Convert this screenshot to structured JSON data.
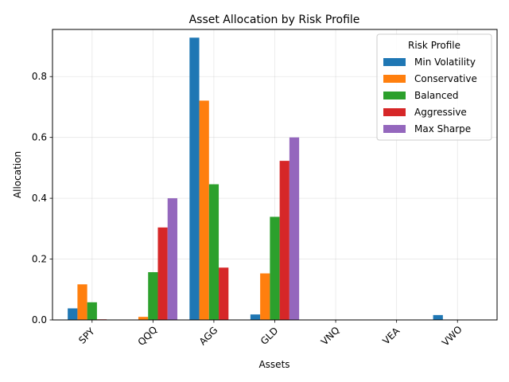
{
  "chart_data": {
    "type": "bar",
    "title": "Asset Allocation by Risk Profile",
    "xlabel": "Assets",
    "ylabel": "Allocation",
    "categories": [
      "SPY",
      "QQQ",
      "AGG",
      "GLD",
      "VNQ",
      "VEA",
      "VWO"
    ],
    "ylim": [
      0,
      0.955
    ],
    "yticks": [
      "0.0",
      "0.2",
      "0.4",
      "0.6",
      "0.8"
    ],
    "grid": true,
    "legend_title": "Risk Profile",
    "legend_position": "top-right",
    "series": [
      {
        "name": "Min Volatility",
        "color": "#1f77b4",
        "values": [
          0.038,
          0.0,
          0.928,
          0.018,
          0.0,
          0.0,
          0.016
        ]
      },
      {
        "name": "Conservative",
        "color": "#ff7f0e",
        "values": [
          0.117,
          0.01,
          0.721,
          0.153,
          0.0,
          0.0,
          0.0
        ]
      },
      {
        "name": "Balanced",
        "color": "#2ca02c",
        "values": [
          0.058,
          0.157,
          0.446,
          0.339,
          0.0,
          0.0,
          0.0
        ]
      },
      {
        "name": "Aggressive",
        "color": "#d62728",
        "values": [
          0.002,
          0.304,
          0.172,
          0.523,
          0.0,
          0.0,
          0.0
        ]
      },
      {
        "name": "Max Sharpe",
        "color": "#9467bd",
        "values": [
          0.0,
          0.4,
          0.0,
          0.6,
          0.0,
          0.0,
          0.0
        ]
      }
    ]
  }
}
